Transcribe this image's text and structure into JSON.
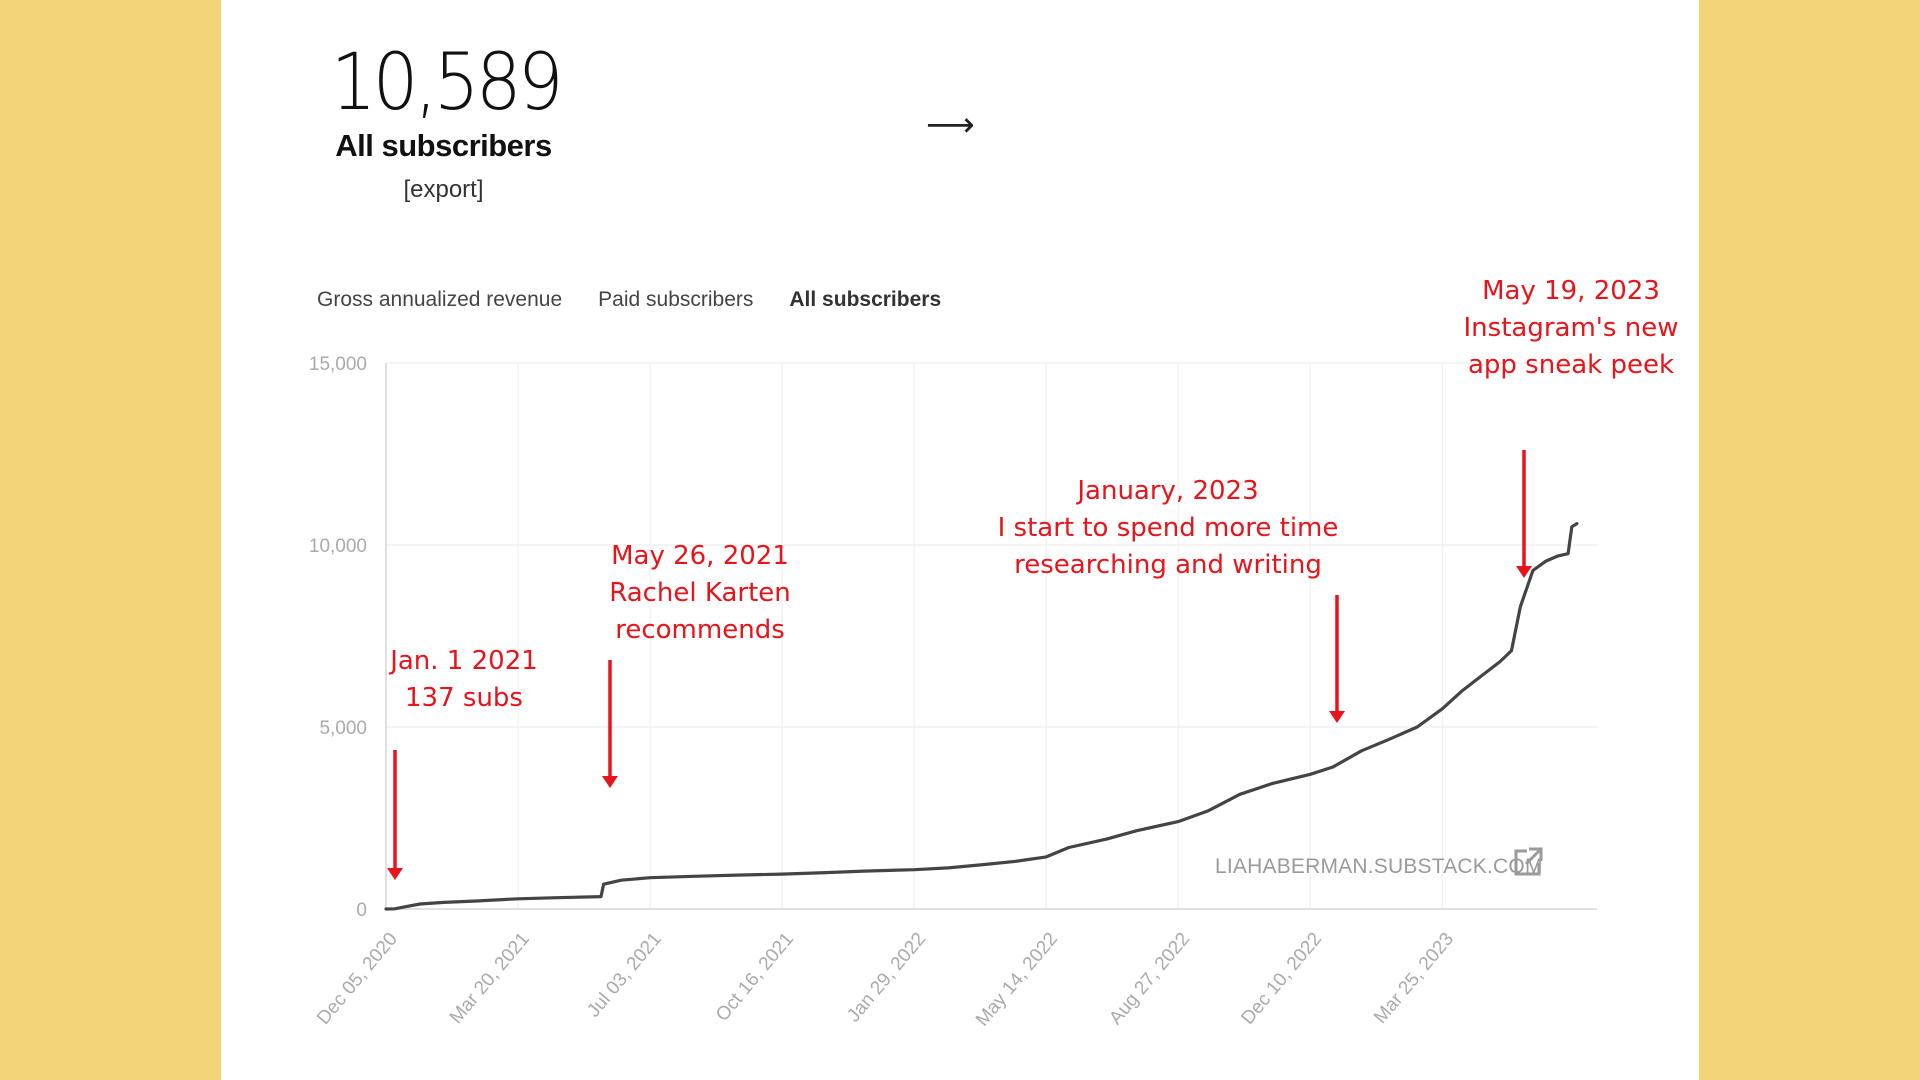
{
  "stat": {
    "value": "10,589",
    "label": "All subscribers",
    "export_label": "[export]"
  },
  "nav": {
    "arrow_icon": "arrow-right-icon",
    "arrow_glyph": "⟶"
  },
  "tabs": [
    {
      "label": "Gross annualized revenue",
      "active": false
    },
    {
      "label": "Paid subscribers",
      "active": false
    },
    {
      "label": "All subscribers",
      "active": true
    }
  ],
  "watermark": {
    "text": "LIAHABERMAN.SUBSTACK.COM",
    "icon": "external-link-icon"
  },
  "colors": {
    "background": "#F4D478",
    "annotation": "#E8141B",
    "line": "#444444"
  },
  "annotations": [
    {
      "lines": [
        "Jan. 1 2021",
        "137 subs"
      ],
      "date": "2021-01-01"
    },
    {
      "lines": [
        "May 26, 2021",
        "Rachel Karten",
        "recommends"
      ],
      "date": "2021-05-26"
    },
    {
      "lines": [
        "January, 2023",
        "I start to spend more time",
        "researching and writing"
      ],
      "date": "2023-01-01"
    },
    {
      "lines": [
        "May 19, 2023",
        "Instagram's new",
        "app sneak peek"
      ],
      "date": "2023-05-19"
    }
  ],
  "chart_data": {
    "type": "line",
    "title": "",
    "xlabel": "",
    "ylabel": "",
    "x_ticks": [
      "Dec 05, 2020",
      "Mar 20, 2021",
      "Jul 03, 2021",
      "Oct 16, 2021",
      "Jan 29, 2022",
      "May 14, 2022",
      "Aug 27, 2022",
      "Dec 10, 2022",
      "Mar 25, 2023"
    ],
    "y_ticks": [
      "0",
      "5,000",
      "10,000",
      "15,000"
    ],
    "ylim": [
      0,
      15000
    ],
    "xlim": [
      "2020-12-05",
      "2023-07-26"
    ],
    "grid": true,
    "series": [
      {
        "points": [
          [
            "2020-12-05",
            0
          ],
          [
            "2020-12-12",
            5
          ],
          [
            "2020-12-20",
            60
          ],
          [
            "2021-01-01",
            137
          ],
          [
            "2021-01-20",
            180
          ],
          [
            "2021-02-15",
            220
          ],
          [
            "2021-03-20",
            280
          ],
          [
            "2021-04-20",
            310
          ],
          [
            "2021-05-25",
            340
          ],
          [
            "2021-05-27",
            680
          ],
          [
            "2021-06-10",
            790
          ],
          [
            "2021-07-03",
            860
          ],
          [
            "2021-08-10",
            900
          ],
          [
            "2021-09-10",
            930
          ],
          [
            "2021-10-16",
            960
          ],
          [
            "2021-11-20",
            1000
          ],
          [
            "2021-12-20",
            1040
          ],
          [
            "2022-01-29",
            1080
          ],
          [
            "2022-02-25",
            1130
          ],
          [
            "2022-03-25",
            1220
          ],
          [
            "2022-04-20",
            1310
          ],
          [
            "2022-05-14",
            1430
          ],
          [
            "2022-06-01",
            1690
          ],
          [
            "2022-07-01",
            1920
          ],
          [
            "2022-07-25",
            2150
          ],
          [
            "2022-08-27",
            2400
          ],
          [
            "2022-09-20",
            2700
          ],
          [
            "2022-10-15",
            3150
          ],
          [
            "2022-11-10",
            3450
          ],
          [
            "2022-12-10",
            3700
          ],
          [
            "2022-12-28",
            3900
          ],
          [
            "2023-01-20",
            4350
          ],
          [
            "2023-02-10",
            4650
          ],
          [
            "2023-03-05",
            5000
          ],
          [
            "2023-03-25",
            5500
          ],
          [
            "2023-04-10",
            6000
          ],
          [
            "2023-04-25",
            6400
          ],
          [
            "2023-05-10",
            6800
          ],
          [
            "2023-05-19",
            7100
          ],
          [
            "2023-05-26",
            8300
          ],
          [
            "2023-06-05",
            9300
          ],
          [
            "2023-06-15",
            9550
          ],
          [
            "2023-06-25",
            9700
          ],
          [
            "2023-07-03",
            9760
          ],
          [
            "2023-07-06",
            10500
          ],
          [
            "2023-07-10",
            10589
          ]
        ]
      }
    ]
  }
}
